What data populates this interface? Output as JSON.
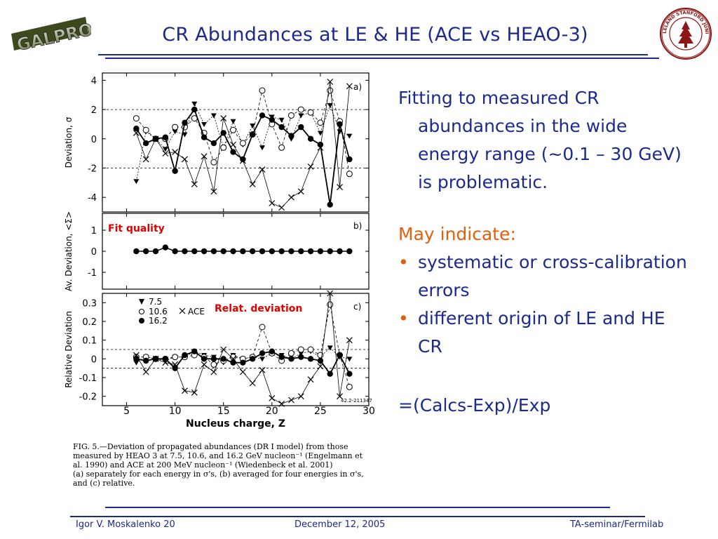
{
  "slide": {
    "title": "CR Abundances at LE & HE (ACE vs HEAO-3)",
    "logo_left_text": "GALPROP",
    "logo_right_text": "LELAND STANFORD JUNIOR UNIVERSITY"
  },
  "bullets": {
    "para1": "Fitting to measured CR abundances in the wide energy range (~0.1 – 30 GeV) is problematic.",
    "para2": "May indicate:",
    "items": [
      "systematic or cross-calibration errors",
      "different origin of LE and HE CR"
    ],
    "formula": "=(Calcs-Exp)/Exp"
  },
  "footer": {
    "left": "Igor V. Moskalenko  20",
    "middle": "December 12, 2005",
    "right": "TA-seminar/Fermilab"
  },
  "figure": {
    "annotation_fit": "Fit quality",
    "annotation_rel": "Relat. deviation",
    "caption_lines": [
      "FIG. 5.—Deviation of propagated abundances (DR I model) from those",
      "measured by HEAO 3 at 7.5, 10.6, and 16.2 GeV nucleon⁻¹ (Engelmann et",
      "al. 1990) and ACE at 200 MeV nucleon⁻¹ (Wiedenbeck et al. 2001)",
      "(a) separately for each energy in σ's, (b) averaged for four energies in σ's,",
      "and (c) relative."
    ],
    "id_tag": "42.2-211347"
  },
  "chart_data": [
    {
      "type": "scatter",
      "panel": "a)",
      "ylabel": "Deviation, σ",
      "ylim": [
        -5,
        4.5
      ],
      "yticks": [
        "4",
        "2",
        "0",
        "-2",
        "-4"
      ],
      "dashed_lines": [
        2,
        -2
      ],
      "series": [
        {
          "name": "7.5",
          "x": [
            6,
            7,
            8,
            9,
            10,
            11,
            12,
            13,
            14,
            15,
            16,
            17,
            18,
            19,
            20,
            21,
            22,
            23,
            24,
            25,
            26,
            27,
            28
          ],
          "values": [
            -2.9,
            0.5,
            0,
            -0.7,
            0.5,
            0.3,
            2.4,
            1.0,
            1.6,
            -0.6,
            1.2,
            -0.4,
            0.9,
            -0.6,
            1.5,
            1.3,
            0,
            1.6,
            1.8,
            0.4,
            2.3,
            0.5,
            0.2
          ]
        },
        {
          "name": "10.6",
          "x": [
            6,
            7,
            8,
            9,
            10,
            11,
            12,
            13,
            14,
            15,
            16,
            17,
            18,
            19,
            20,
            21,
            22,
            23,
            24,
            25,
            26,
            27,
            28
          ],
          "values": [
            1.4,
            0.6,
            0,
            0,
            0.8,
            0.8,
            1.4,
            0.4,
            -1.6,
            -0.6,
            0.6,
            -0.3,
            0.3,
            3.3,
            1.0,
            -0.6,
            1.6,
            2.0,
            1.8,
            1.1,
            3.3,
            1.2,
            -2.4
          ]
        },
        {
          "name": "16.2",
          "x": [
            6,
            7,
            8,
            9,
            10,
            11,
            12,
            13,
            14,
            15,
            16,
            17,
            18,
            19,
            20,
            21,
            22,
            23,
            24,
            25,
            26,
            27,
            28
          ],
          "values": [
            0.7,
            -0.3,
            0,
            0.1,
            -2.2,
            1.1,
            2.0,
            0.1,
            -0.3,
            0.4,
            -0.9,
            -1.4,
            0.3,
            1.6,
            1.3,
            0.8,
            0.2,
            0.8,
            0,
            -0.4,
            -4.5,
            1.0,
            -1.4
          ]
        },
        {
          "name": "ACE",
          "x": [
            6,
            7,
            8,
            9,
            10,
            11,
            12,
            13,
            14,
            15,
            16,
            17,
            18,
            19,
            20,
            21,
            22,
            23,
            24,
            25,
            26,
            27,
            28
          ],
          "values": [
            0.4,
            -1.4,
            0,
            -1.0,
            -0.9,
            -1.4,
            -3.1,
            -1.2,
            -3.6,
            1.4,
            -0.4,
            -1.5,
            -3.1,
            -2.1,
            -4.4,
            -4.7,
            -4.0,
            -3.6,
            -1.9,
            -0.6,
            3.9,
            -3.3,
            3.6
          ]
        }
      ]
    },
    {
      "type": "scatter",
      "panel": "b)",
      "ylabel": "Av. Deviation, <Σ>",
      "ylim": [
        -1.8,
        1.8
      ],
      "yticks": [
        "1",
        "0",
        "-1"
      ],
      "series": [
        {
          "name": "average",
          "x": [
            6,
            7,
            8,
            9,
            10,
            11,
            12,
            13,
            14,
            15,
            16,
            17,
            18,
            19,
            20,
            21,
            22,
            23,
            24,
            25,
            26,
            27,
            28
          ],
          "values": [
            0,
            0,
            0,
            0.18,
            0,
            0,
            0,
            0,
            0,
            0,
            0,
            0,
            0,
            0,
            0,
            0,
            0,
            0,
            0,
            0,
            0,
            0,
            0
          ]
        }
      ]
    },
    {
      "type": "scatter",
      "panel": "c)",
      "ylabel": "Relative Deviation",
      "xlabel": "Nucleus charge, Z",
      "xlim": [
        2.5,
        30
      ],
      "ylim": [
        -0.25,
        0.35
      ],
      "xticks": [
        "5",
        "10",
        "15",
        "20",
        "25",
        "30"
      ],
      "yticks": [
        "0.3",
        "0.2",
        "0.1",
        "0",
        "-0.1",
        "-0.2"
      ],
      "dashed_lines": [
        0.05,
        -0.05
      ],
      "legend": [
        "7.5",
        "10.6",
        "16.2",
        "ACE"
      ],
      "series": [
        {
          "name": "7.5",
          "x": [
            6,
            7,
            8,
            9,
            10,
            11,
            12,
            13,
            14,
            15,
            16,
            17,
            18,
            19,
            20,
            21,
            22,
            23,
            24,
            25,
            26,
            27,
            28
          ],
          "values": [
            -0.02,
            0.01,
            0,
            -0.01,
            0.01,
            0.01,
            0.04,
            0.02,
            0.01,
            -0.02,
            0.02,
            0,
            0.01,
            0,
            0.03,
            0.02,
            0,
            0.03,
            0.04,
            0.01,
            0.06,
            0.01,
            0
          ]
        },
        {
          "name": "10.6",
          "x": [
            6,
            7,
            8,
            9,
            10,
            11,
            12,
            13,
            14,
            15,
            16,
            17,
            18,
            19,
            20,
            21,
            22,
            23,
            24,
            25,
            26,
            27,
            28
          ],
          "values": [
            0.01,
            0.01,
            0,
            0,
            0.01,
            0.01,
            0.02,
            0.01,
            -0.03,
            -0.01,
            0.01,
            0,
            0.01,
            0.17,
            0.03,
            -0.01,
            0.03,
            0.05,
            0.05,
            0.02,
            0.29,
            0.02,
            -0.15
          ]
        },
        {
          "name": "16.2",
          "x": [
            6,
            7,
            8,
            9,
            10,
            11,
            12,
            13,
            14,
            15,
            16,
            17,
            18,
            19,
            20,
            21,
            22,
            23,
            24,
            25,
            26,
            27,
            28
          ],
          "values": [
            0,
            -0.01,
            0,
            0,
            -0.05,
            0.02,
            0.04,
            0,
            0,
            0,
            -0.02,
            -0.02,
            0,
            0.03,
            0.04,
            0.01,
            0,
            0.01,
            0,
            -0.01,
            -0.08,
            0.02,
            -0.08
          ]
        },
        {
          "name": "ACE",
          "x": [
            6,
            7,
            8,
            9,
            10,
            11,
            12,
            13,
            14,
            15,
            16,
            17,
            18,
            19,
            20,
            21,
            22,
            23,
            24,
            25,
            26,
            27,
            28
          ],
          "values": [
            0.02,
            -0.07,
            0,
            -0.02,
            -0.03,
            -0.17,
            -0.18,
            -0.03,
            -0.07,
            0.05,
            0,
            -0.07,
            -0.13,
            -0.06,
            -0.21,
            -0.24,
            -0.22,
            -0.2,
            -0.11,
            -0.04,
            0.35,
            -0.2,
            0.1
          ]
        }
      ]
    }
  ]
}
